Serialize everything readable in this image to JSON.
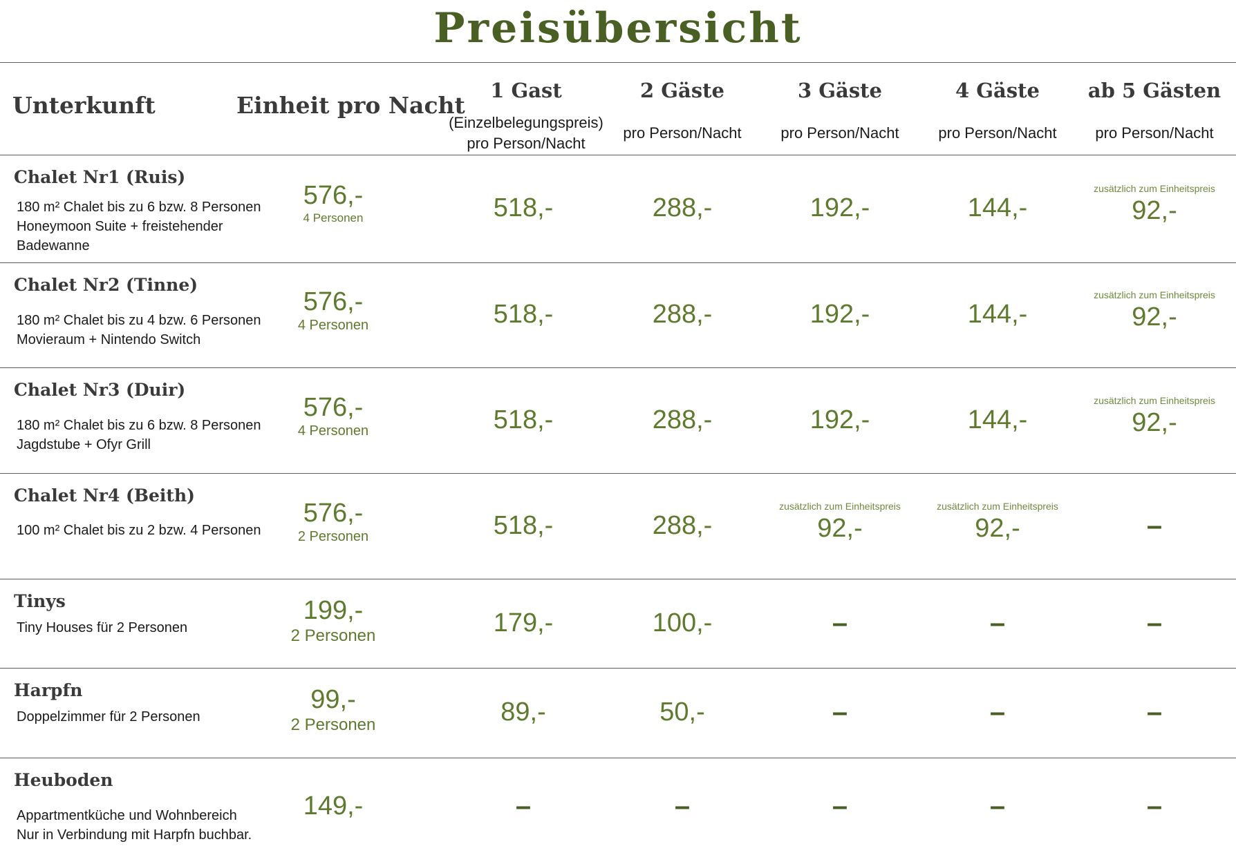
{
  "title": "Preisübersicht",
  "header": {
    "unterkunft": "Unterkunft",
    "einheit": "Einheit pro Nacht",
    "g1": "1 Gast",
    "g1_sub": "(Einzelbelegungspreis) pro Person/Nacht",
    "g2": "2 Gäste",
    "g3": "3 Gäste",
    "g4": "4 Gäste",
    "g5": "ab 5 Gästen",
    "per": "pro Person/Nacht"
  },
  "rows": [
    {
      "name": "Chalet Nr1 (Ruis)",
      "desc": [
        "180 m² Chalet bis zu 6 bzw. 8 Personen",
        "Honeymoon Suite + freistehender",
        "Badewanne"
      ],
      "unit_price": "576,-",
      "unit_persons": "4 Personen",
      "prices": [
        {
          "price": "518,-"
        },
        {
          "price": "288,-"
        },
        {
          "price": "192,-"
        },
        {
          "price": "144,-"
        },
        {
          "note": "zusätzlich zum Einheitspreis",
          "price": "92,-"
        }
      ]
    },
    {
      "name": "Chalet Nr2 (Tinne)",
      "desc": [
        "180 m² Chalet bis zu 4 bzw. 6 Personen",
        "Movieraum + Nintendo Switch"
      ],
      "unit_price": "576,-",
      "unit_persons": "4 Personen",
      "prices": [
        {
          "price": "518,-"
        },
        {
          "price": "288,-"
        },
        {
          "price": "192,-"
        },
        {
          "price": "144,-"
        },
        {
          "note": "zusätzlich zum Einheitspreis",
          "price": "92,-"
        }
      ]
    },
    {
      "name": "Chalet  Nr3 (Duir)",
      "desc": [
        "180 m² Chalet bis zu 6 bzw. 8 Personen",
        "Jagdstube + Ofyr Grill"
      ],
      "unit_price": "576,-",
      "unit_persons": "4 Personen",
      "prices": [
        {
          "price": "518,-"
        },
        {
          "price": "288,-"
        },
        {
          "price": "192,-"
        },
        {
          "price": "144,-"
        },
        {
          "note": "zusätzlich zum Einheitspreis",
          "price": "92,-"
        }
      ]
    },
    {
      "name": "Chalet  Nr4 (Beith)",
      "desc": [
        "100 m² Chalet  bis zu 2 bzw. 4 Personen"
      ],
      "unit_price": "576,-",
      "unit_persons": "2 Personen",
      "prices": [
        {
          "price": "518,-"
        },
        {
          "price": "288,-"
        },
        {
          "note": "zusätzlich zum Einheitspreis",
          "price": "92,-"
        },
        {
          "note": "zusätzlich zum Einheitspreis",
          "price": "92,-"
        },
        {
          "dash": "–"
        }
      ]
    },
    {
      "name": "Tinys",
      "desc": [
        "Tiny Houses für 2 Personen"
      ],
      "unit_price": "199,-",
      "unit_persons": "2 Personen",
      "prices": [
        {
          "price": "179,-"
        },
        {
          "price": "100,-"
        },
        {
          "dash": "–"
        },
        {
          "dash": "–"
        },
        {
          "dash": "–"
        }
      ]
    },
    {
      "name": "Harpfn",
      "desc": [
        "Doppelzimmer für 2 Personen"
      ],
      "unit_price": "99,-",
      "unit_persons": "2 Personen",
      "prices": [
        {
          "price": "89,-"
        },
        {
          "price": "50,-"
        },
        {
          "dash": "–"
        },
        {
          "dash": "–"
        },
        {
          "dash": "–"
        }
      ]
    },
    {
      "name": "Heuboden",
      "desc": [
        "Appartmentküche und Wohnbereich",
        "Nur in Verbindung mit Harpfn buchbar."
      ],
      "unit_price": "149,-",
      "unit_persons": "",
      "prices": [
        {
          "dash": "–"
        },
        {
          "dash": "–"
        },
        {
          "dash": "–"
        },
        {
          "dash": "–"
        },
        {
          "dash": "–"
        }
      ]
    }
  ]
}
